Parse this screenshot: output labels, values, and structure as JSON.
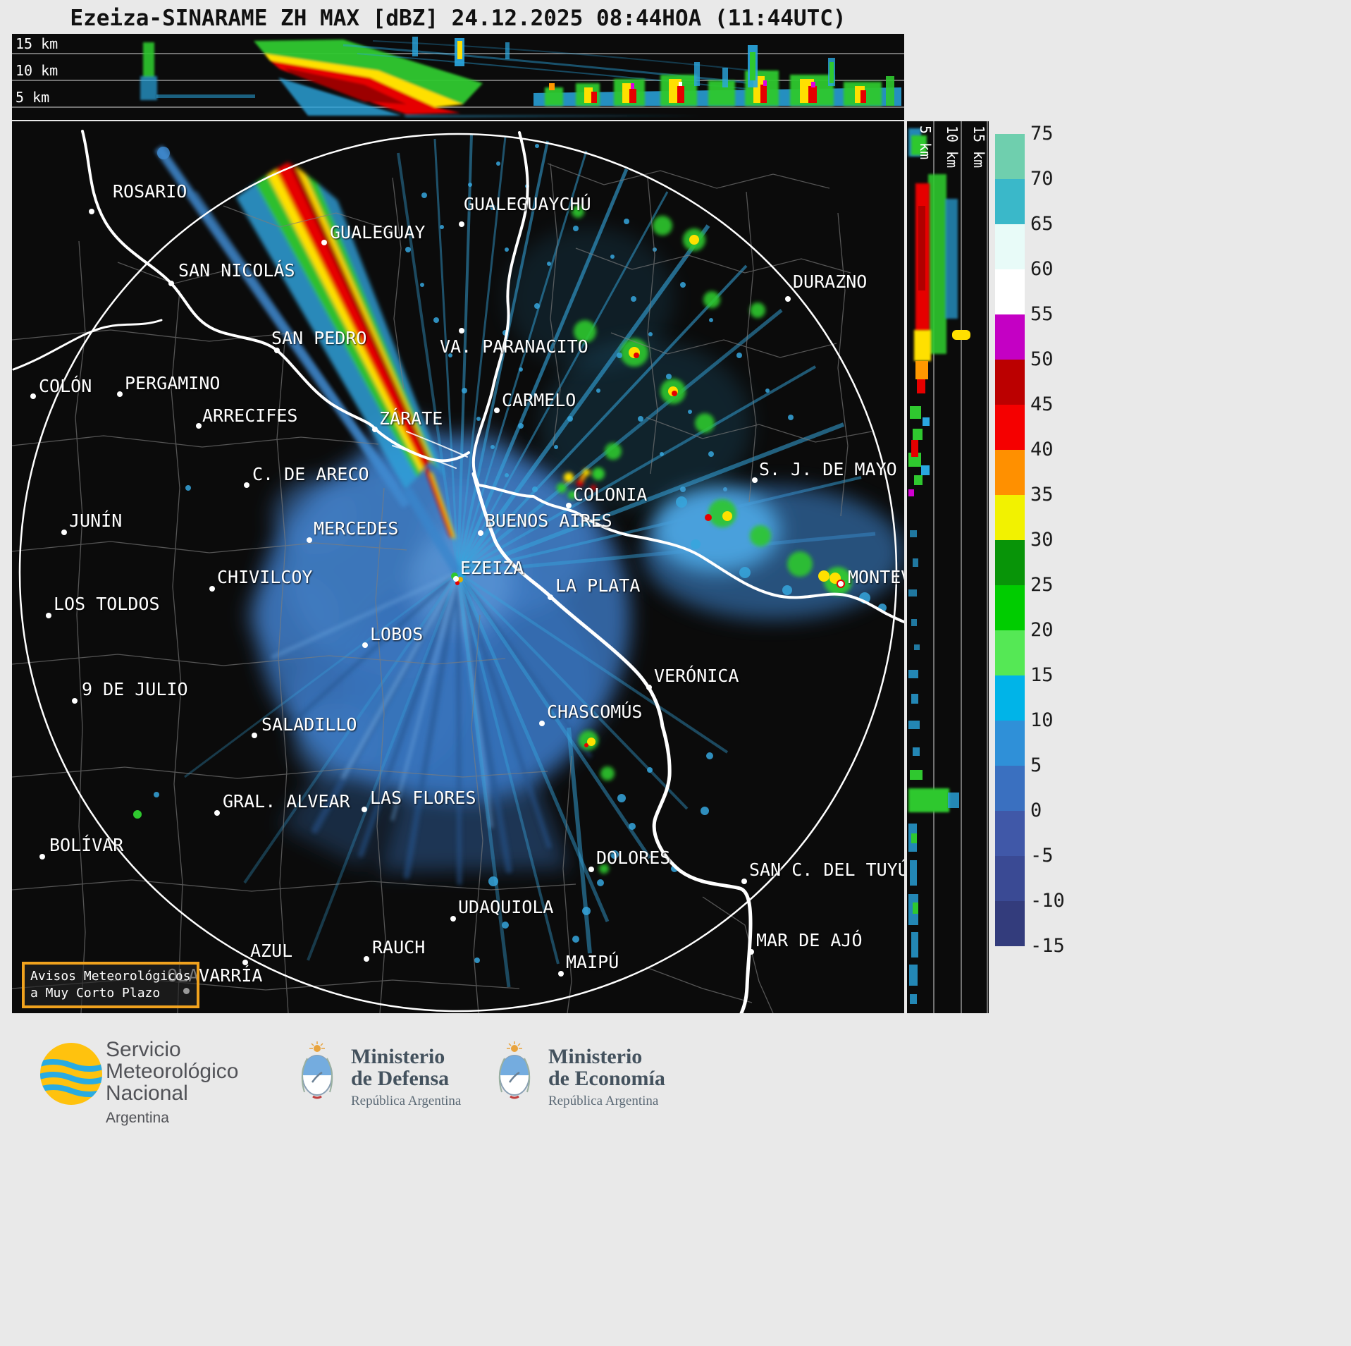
{
  "title": "Ezeiza-SINARAME ZH MAX [dBZ] 24.12.2025 08:44HOA (11:44UTC)",
  "top_profile": {
    "labels": [
      "15 km",
      "10 km",
      "5 km"
    ]
  },
  "right_profile": {
    "labels": [
      "5 km",
      "10 km",
      "15 km"
    ]
  },
  "colorbar": {
    "units": "dBZ",
    "ticks": [
      "75",
      "70",
      "65",
      "60",
      "55",
      "50",
      "45",
      "40",
      "35",
      "30",
      "25",
      "20",
      "15",
      "10",
      "5",
      "0",
      "-5",
      "-10",
      "-15"
    ],
    "segments": [
      "#6fcfae",
      "#3ab8c9",
      "#e8fbf8",
      "#ffffff",
      "#c400c4",
      "#bb0000",
      "#f50000",
      "#ff9000",
      "#f2f200",
      "#089408",
      "#00cc00",
      "#55e855",
      "#00b4e8",
      "#2f90d8",
      "#3a70c0",
      "#4058a8",
      "#3a4a94",
      "#333c7c"
    ]
  },
  "advisory": {
    "line1": "Avisos Meteorológicos",
    "line2": "a Muy Corto Plazo"
  },
  "map": {
    "cities": [
      {
        "n": "ROSARIO",
        "d": [
          113,
          128
        ],
        "l": [
          143,
          86
        ]
      },
      {
        "n": "GUALEGUAYCHÚ",
        "d": [
          638,
          146
        ],
        "l": [
          641,
          104
        ]
      },
      {
        "n": "GUALEGUAY",
        "d": [
          443,
          172
        ],
        "l": [
          451,
          144
        ]
      },
      {
        "n": "SAN NICOLÁS",
        "d": [
          226,
          230
        ],
        "l": [
          236,
          198
        ]
      },
      {
        "n": "DURAZNO",
        "d": [
          1101,
          252
        ],
        "l": [
          1108,
          214
        ]
      },
      {
        "n": "SAN PEDRO",
        "d": [
          376,
          325
        ],
        "l": [
          368,
          294
        ]
      },
      {
        "n": "VA. PARANACITO",
        "d": [
          638,
          297
        ],
        "l": [
          607,
          306
        ]
      },
      {
        "n": "COLÓN",
        "d": [
          30,
          390
        ],
        "l": [
          38,
          362
        ]
      },
      {
        "n": "PERGAMINO",
        "d": [
          153,
          387
        ],
        "l": [
          160,
          358
        ]
      },
      {
        "n": "ARRECIFES",
        "d": [
          265,
          432
        ],
        "l": [
          270,
          404
        ]
      },
      {
        "n": "CARMELO",
        "d": [
          688,
          410
        ],
        "l": [
          695,
          382
        ]
      },
      {
        "n": "ZÁRATE",
        "d": [
          515,
          437
        ],
        "l": [
          521,
          408
        ]
      },
      {
        "n": "C. DE ARECO",
        "d": [
          333,
          516
        ],
        "l": [
          341,
          487
        ]
      },
      {
        "n": "S. J. DE MAYO",
        "d": [
          1054,
          509
        ],
        "l": [
          1060,
          480
        ]
      },
      {
        "n": "JUNÍN",
        "d": [
          74,
          583
        ],
        "l": [
          81,
          553
        ]
      },
      {
        "n": "MERCEDES",
        "d": [
          422,
          594
        ],
        "l": [
          428,
          564
        ]
      },
      {
        "n": "BUENOS AIRES",
        "d": [
          665,
          584
        ],
        "l": [
          671,
          553
        ]
      },
      {
        "n": "COLONIA",
        "d": [
          790,
          545
        ],
        "l": [
          796,
          516
        ]
      },
      {
        "n": "EZEIZA",
        "d": [
          630,
          649
        ],
        "l": [
          636,
          620
        ]
      },
      {
        "n": "CHIVILCOY",
        "d": [
          284,
          663
        ],
        "l": [
          291,
          633
        ]
      },
      {
        "n": "LA PLATA",
        "d": [
          764,
          675
        ],
        "l": [
          771,
          645
        ]
      },
      {
        "n": "LOS TOLDOS",
        "d": [
          52,
          701
        ],
        "l": [
          59,
          671
        ]
      },
      {
        "n": "MONTEVIDEO",
        "d": [
          1176,
          656
        ],
        "l": [
          1186,
          633
        ]
      },
      {
        "n": "LOBOS",
        "d": [
          501,
          743
        ],
        "l": [
          508,
          714
        ]
      },
      {
        "n": "VERÓNICA",
        "d": [
          904,
          803
        ],
        "l": [
          911,
          773
        ]
      },
      {
        "n": "9 DE JULIO",
        "d": [
          89,
          822
        ],
        "l": [
          99,
          792
        ]
      },
      {
        "n": "CHASCOMÚS",
        "d": [
          752,
          854
        ],
        "l": [
          759,
          824
        ]
      },
      {
        "n": "SALADILLO",
        "d": [
          344,
          871
        ],
        "l": [
          354,
          842
        ]
      },
      {
        "n": "GRAL. ALVEAR",
        "d": [
          291,
          981
        ],
        "l": [
          299,
          951
        ]
      },
      {
        "n": "LAS FLORES",
        "d": [
          500,
          976
        ],
        "l": [
          508,
          946
        ]
      },
      {
        "n": "BOLÍVAR",
        "d": [
          43,
          1043
        ],
        "l": [
          53,
          1013
        ]
      },
      {
        "n": "DOLORES",
        "d": [
          822,
          1061
        ],
        "l": [
          829,
          1031
        ]
      },
      {
        "n": "SAN C. DEL TUYÚ",
        "d": [
          1039,
          1078
        ],
        "l": [
          1046,
          1048
        ]
      },
      {
        "n": "UDAQUIOLA",
        "d": [
          626,
          1131
        ],
        "l": [
          633,
          1101
        ]
      },
      {
        "n": "AZUL",
        "d": [
          331,
          1193
        ],
        "l": [
          338,
          1163
        ]
      },
      {
        "n": "RAUCH",
        "d": [
          503,
          1188
        ],
        "l": [
          511,
          1158
        ]
      },
      {
        "n": "MAR DE AJÓ",
        "d": [
          1049,
          1178
        ],
        "l": [
          1056,
          1148
        ]
      },
      {
        "n": "MAIPÚ",
        "d": [
          779,
          1209
        ],
        "l": [
          786,
          1179
        ]
      },
      {
        "n": "OLAVARRÍA",
        "d": null,
        "l": [
          220,
          1198
        ]
      }
    ]
  },
  "footer": {
    "smn": {
      "line1": "Servicio",
      "line2": "Meteorológico",
      "line3": "Nacional",
      "country": "Argentina"
    },
    "defensa": {
      "line1": "Ministerio",
      "line2": "de Defensa",
      "sub": "República Argentina"
    },
    "economia": {
      "line1": "Ministerio",
      "line2": "de Economía",
      "sub": "República Argentina"
    }
  }
}
